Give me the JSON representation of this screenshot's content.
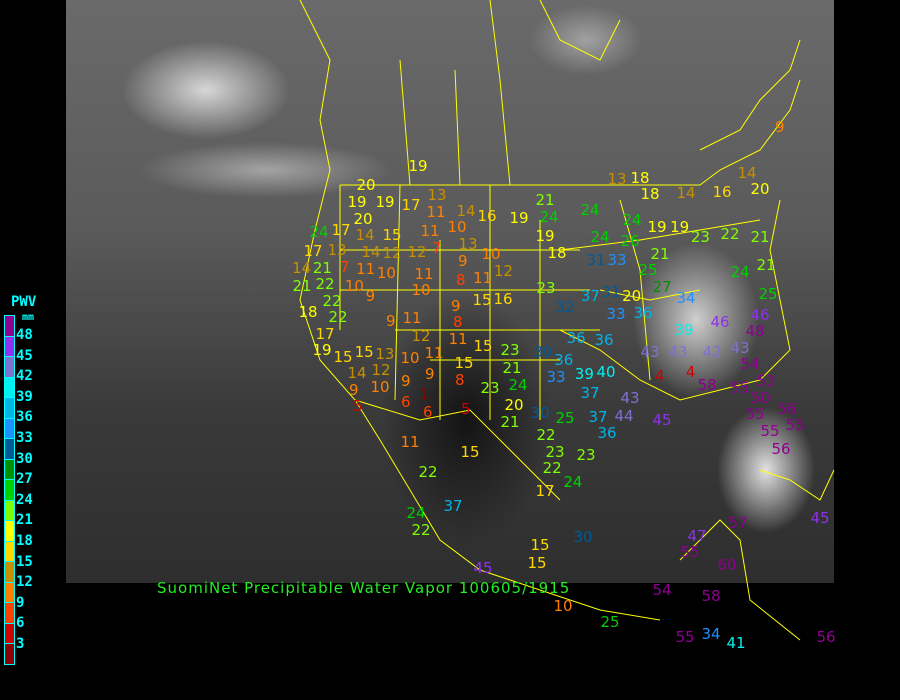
{
  "caption": "SuomiNet Precipitable Water Vapor 100605/1915",
  "colorbar": {
    "title": "PWV",
    "unit": "mm",
    "labels": [
      "48",
      "45",
      "42",
      "39",
      "36",
      "33",
      "30",
      "27",
      "24",
      "21",
      "18",
      "15",
      "12",
      "9",
      "6",
      "3"
    ],
    "colors": [
      "#900090",
      "#9030f0",
      "#8070d0",
      "#00f0f0",
      "#00b4e6",
      "#1e90ff",
      "#005a96",
      "#009000",
      "#00d000",
      "#80ff00",
      "#ffff00",
      "#ffd800",
      "#c89000",
      "#ff8000",
      "#ff4000",
      "#d00000",
      "#8b0000"
    ]
  },
  "boundary_color": "#ffff00",
  "stations": [
    19,
    20,
    19,
    19,
    17,
    13,
    11,
    14,
    16,
    19,
    21,
    24,
    19,
    18,
    20,
    17,
    14,
    15,
    11,
    10,
    13,
    9,
    10,
    24,
    17,
    13,
    14,
    12,
    12,
    7,
    14,
    21,
    7,
    11,
    10,
    11,
    8,
    11,
    12,
    21,
    22,
    10,
    9,
    10,
    15,
    16,
    18,
    22,
    22,
    9,
    9,
    11,
    8,
    17,
    19,
    12,
    11,
    15,
    15,
    15,
    13,
    10,
    11,
    14,
    12,
    9,
    15,
    8,
    9,
    10,
    9,
    1,
    6,
    5,
    6,
    5,
    23,
    24,
    21,
    23,
    23,
    31,
    33,
    24,
    26,
    24,
    24,
    19,
    19,
    23,
    22,
    21,
    13,
    18,
    18,
    14,
    16,
    14,
    20,
    9,
    21,
    25,
    32,
    37,
    31,
    20,
    27,
    34,
    33,
    36,
    39,
    46,
    46,
    48,
    36,
    36,
    43,
    43,
    42,
    43,
    30,
    36,
    33,
    39,
    40,
    37,
    43,
    4,
    4,
    58,
    54,
    55,
    50,
    53,
    55,
    56,
    55,
    55,
    56,
    37,
    36,
    44,
    45,
    20,
    21,
    30,
    25,
    22,
    23,
    22,
    24,
    17,
    23,
    11,
    15,
    22,
    37,
    24,
    22,
    15,
    15,
    30,
    45,
    10,
    25,
    47,
    55,
    57,
    60,
    54,
    58,
    55,
    34,
    41,
    56,
    45,
    21,
    25,
    24
  ]
}
